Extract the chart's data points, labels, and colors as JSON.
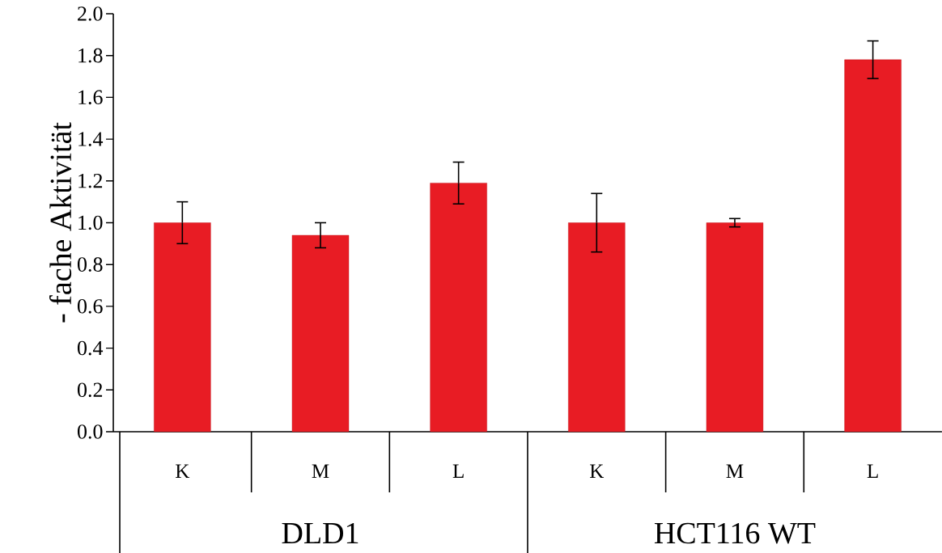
{
  "chart_data": {
    "type": "bar",
    "ylabel": "- fache Aktivität",
    "categories": [
      "K",
      "M",
      "L",
      "K",
      "M",
      "L"
    ],
    "values": [
      1.0,
      0.94,
      1.19,
      1.0,
      1.0,
      1.78
    ],
    "errors": [
      0.1,
      0.06,
      0.1,
      0.14,
      0.02,
      0.09
    ],
    "color": "#e81c24",
    "ylim": [
      0,
      2.0
    ],
    "yticks": [
      {
        "value": 0,
        "label": "0.0"
      },
      {
        "value": 0.2,
        "label": "0.2"
      },
      {
        "value": 0.4,
        "label": "0.4"
      },
      {
        "value": 0.6,
        "label": "0.6"
      },
      {
        "value": 0.8,
        "label": "0.8"
      },
      {
        "value": 1.0,
        "label": "1.0"
      },
      {
        "value": 1.2,
        "label": "1.2"
      },
      {
        "value": 1.4,
        "label": "1.4"
      },
      {
        "value": 1.6,
        "label": "1.6"
      },
      {
        "value": 1.8,
        "label": "1.8"
      },
      {
        "value": 2.0,
        "label": "2.0"
      }
    ],
    "annotations": [
      "DLD1",
      "HCT116 WT"
    ]
  }
}
